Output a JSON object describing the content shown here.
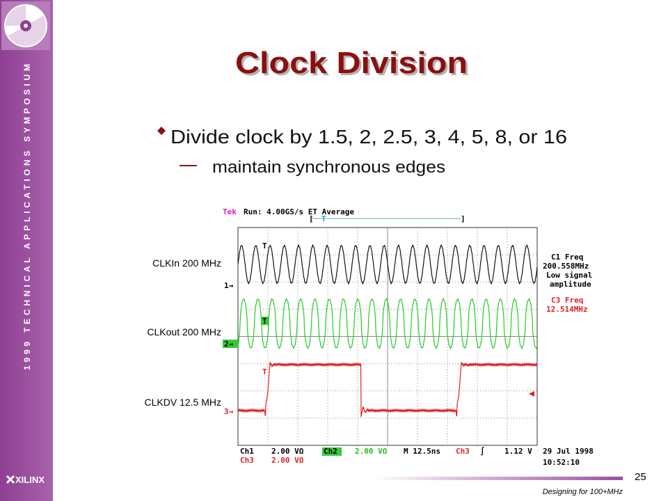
{
  "sidebar": {
    "vertical_text": "1999 TECHNICAL APPLICATIONS SYMPOSIUM",
    "logo": "XILINX"
  },
  "slide": {
    "title": "Clock Division",
    "bullet": "Divide clock by 1.5, 2, 2.5, 3, 4, 5, 8, or 16",
    "sub_bullet": "maintain synchronous edges",
    "page_number": 25,
    "footer": "Designing for 100+MHz"
  },
  "scope": {
    "signal_labels": [
      "CLKIn 200 MHz",
      "CLKout 200 MHz",
      "CLKDV 12.5 MHz"
    ],
    "brand": "Tek",
    "status": "Run: 4.00GS/s ET Average",
    "trigger_marker": "T",
    "channel_markers": [
      "1→",
      "2→",
      "3→"
    ],
    "readouts": {
      "c1": [
        "C1 Freq",
        "200.558MHz",
        "Low signal",
        "amplitude"
      ],
      "c3": [
        "C3 Freq",
        "12.514MHz"
      ]
    },
    "settings": {
      "ch1": "Ch1",
      "ch1_scale": "2.00 VΩ",
      "ch2": "Ch2",
      "ch2_scale": "2.00 VΩ",
      "timebase": "M 12.5ns",
      "trigger_source": "Ch3",
      "trigger_slope": "∫",
      "trigger_level": "1.12 V",
      "ch3": "Ch3",
      "ch3_scale": "2.00 VΩ"
    },
    "date": "29 Jul 1998",
    "time": "10:52:10"
  }
}
